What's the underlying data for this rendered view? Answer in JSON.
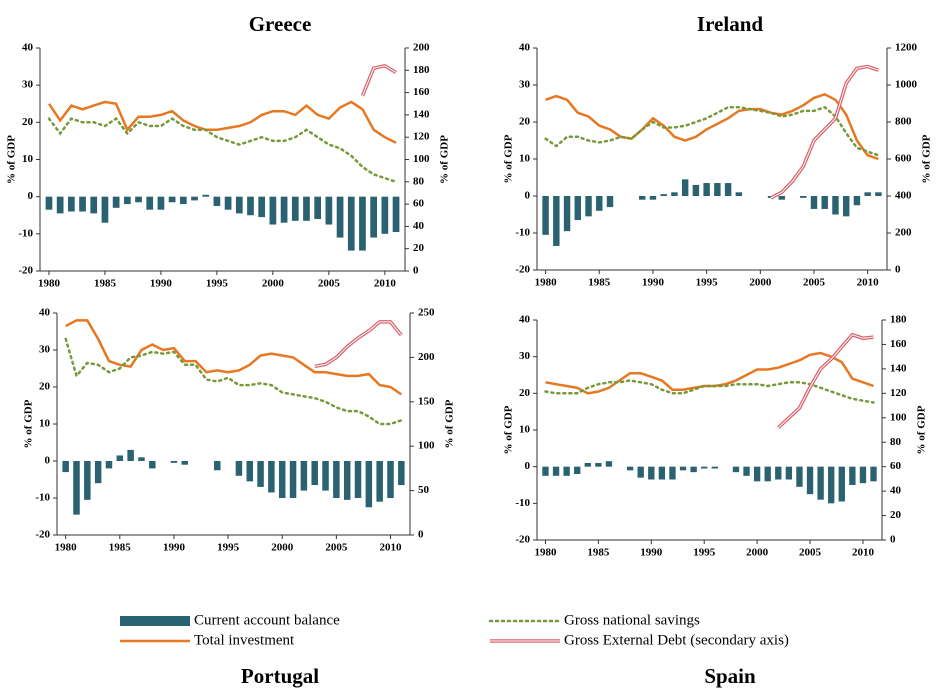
{
  "legend": [
    {
      "name": "Current account balance",
      "color": "#2a6272",
      "style": "bar"
    },
    {
      "name": "Total investment",
      "color": "#e87722",
      "style": "line"
    },
    {
      "name": "Gross national savings",
      "color": "#77993a",
      "style": "dotted"
    },
    {
      "name": "Gross External Debt (secondary axis)",
      "color": "#d9636b",
      "style": "double"
    }
  ],
  "chart_data": [
    {
      "type": "combo",
      "title": "Greece",
      "ylabel": "% of GDP",
      "y2label": "% of GDP",
      "x": [
        1980,
        1981,
        1982,
        1983,
        1984,
        1985,
        1986,
        1987,
        1988,
        1989,
        1990,
        1991,
        1992,
        1993,
        1994,
        1995,
        1996,
        1997,
        1998,
        1999,
        2000,
        2001,
        2002,
        2003,
        2004,
        2005,
        2006,
        2007,
        2008,
        2009,
        2010,
        2011
      ],
      "xlim": [
        1979.2,
        2011.8
      ],
      "xticks": [
        1980,
        1985,
        1990,
        1995,
        2000,
        2005,
        2010
      ],
      "ylim": [
        -20,
        40
      ],
      "yticks": [
        -20,
        -10,
        0,
        10,
        20,
        30,
        40
      ],
      "y2lim": [
        0,
        200
      ],
      "y2ticks": [
        0,
        20,
        40,
        60,
        80,
        100,
        120,
        140,
        160,
        180,
        200
      ],
      "series": [
        {
          "values": [
            -3.5,
            -4.5,
            -4,
            -4,
            -4.5,
            -7,
            -3,
            -2,
            -1.5,
            -3.5,
            -3.5,
            -1.5,
            -2,
            -1,
            0.5,
            -2.5,
            -3.5,
            -4.5,
            -5,
            -5.5,
            -7.5,
            -7,
            -6.5,
            -6.5,
            -6,
            -7.5,
            -11,
            -14.5,
            -14.5,
            -11,
            -10,
            -9.5
          ]
        },
        {
          "values": [
            25,
            20.5,
            24.5,
            23.5,
            24.5,
            25.5,
            25,
            18,
            21.5,
            21.5,
            22,
            23,
            20.5,
            19,
            18,
            18,
            18.5,
            19,
            20,
            22,
            23,
            23,
            22,
            24.5,
            22,
            21,
            24,
            25.5,
            23.5,
            18,
            16,
            14.5
          ]
        },
        {
          "values": [
            21,
            17,
            21,
            20,
            20,
            19,
            21,
            17,
            20,
            19,
            19,
            21,
            19,
            18,
            18,
            16,
            15,
            14,
            15,
            16,
            15,
            15,
            16,
            18,
            16,
            14,
            13,
            11,
            8,
            6,
            5,
            4
          ]
        },
        {
          "axis": "y2",
          "values": [
            null,
            null,
            null,
            null,
            null,
            null,
            null,
            null,
            null,
            null,
            null,
            null,
            null,
            null,
            null,
            null,
            null,
            null,
            null,
            null,
            null,
            null,
            null,
            null,
            null,
            null,
            null,
            null,
            157,
            182,
            184,
            178
          ]
        }
      ]
    },
    {
      "type": "combo",
      "title": "Ireland",
      "ylabel": "% of GDP",
      "y2label": "% of GDP",
      "x": [
        1980,
        1981,
        1982,
        1983,
        1984,
        1985,
        1986,
        1987,
        1988,
        1989,
        1990,
        1991,
        1992,
        1993,
        1994,
        1995,
        1996,
        1997,
        1998,
        1999,
        2000,
        2001,
        2002,
        2003,
        2004,
        2005,
        2006,
        2007,
        2008,
        2009,
        2010,
        2011
      ],
      "xlim": [
        1979.2,
        2011.8
      ],
      "xticks": [
        1980,
        1985,
        1990,
        1995,
        2000,
        2005,
        2010
      ],
      "ylim": [
        -20,
        40
      ],
      "yticks": [
        -20,
        -10,
        0,
        10,
        20,
        30,
        40
      ],
      "y2lim": [
        0,
        1200
      ],
      "y2ticks": [
        0,
        200,
        400,
        600,
        800,
        1000,
        1200
      ],
      "series": [
        {
          "values": [
            -10.5,
            -13.5,
            -9.5,
            -6.5,
            -5.5,
            -4,
            -3,
            0,
            0,
            -1,
            -1,
            0.5,
            1,
            4.5,
            3,
            3.5,
            3.5,
            3.5,
            1,
            0,
            0,
            -0.5,
            -1,
            0,
            -0.5,
            -3.5,
            -3.5,
            -5,
            -5.5,
            -2.5,
            1,
            1
          ]
        },
        {
          "values": [
            26,
            27,
            26,
            22.5,
            21.5,
            19,
            18,
            16,
            15.5,
            18,
            21,
            19,
            16,
            15,
            16,
            18,
            19.5,
            21,
            23,
            23.5,
            23.5,
            22.5,
            22,
            23,
            24.5,
            26.5,
            27.5,
            26,
            22,
            15,
            11,
            10
          ]
        },
        {
          "values": [
            15.5,
            13.5,
            16,
            16,
            15,
            14.5,
            15,
            16,
            15.5,
            18,
            20,
            18.5,
            18.5,
            19,
            20,
            21,
            22.5,
            24,
            24,
            23.5,
            23,
            22.5,
            21.5,
            22,
            23,
            23,
            24,
            21.5,
            17,
            13,
            12,
            11
          ]
        },
        {
          "axis": "y2",
          "values": [
            null,
            null,
            null,
            null,
            null,
            null,
            null,
            null,
            null,
            null,
            null,
            null,
            null,
            null,
            null,
            null,
            null,
            null,
            null,
            null,
            null,
            390,
            420,
            480,
            560,
            700,
            760,
            820,
            1010,
            1090,
            1100,
            1080
          ]
        }
      ]
    },
    {
      "type": "combo",
      "title": "Portugal",
      "ylabel": "% of GDP",
      "y2label": "% of GDP",
      "x": [
        1980,
        1981,
        1982,
        1983,
        1984,
        1985,
        1986,
        1987,
        1988,
        1989,
        1990,
        1991,
        1992,
        1993,
        1994,
        1995,
        1996,
        1997,
        1998,
        1999,
        2000,
        2001,
        2002,
        2003,
        2004,
        2005,
        2006,
        2007,
        2008,
        2009,
        2010,
        2011
      ],
      "xlim": [
        1979.2,
        2011.8
      ],
      "xticks": [
        1980,
        1985,
        1990,
        1995,
        2000,
        2005,
        2010
      ],
      "ylim": [
        -20,
        40
      ],
      "yticks": [
        -20,
        -10,
        0,
        10,
        20,
        30,
        40
      ],
      "y2lim": [
        0,
        250
      ],
      "y2ticks": [
        0,
        50,
        100,
        150,
        200,
        250
      ],
      "series": [
        {
          "values": [
            -3,
            -14.5,
            -10.5,
            -6,
            -2,
            1.5,
            3,
            1,
            -2,
            0,
            -0.5,
            -1,
            0,
            0,
            -2.5,
            0,
            -4,
            -5.5,
            -7,
            -8.5,
            -10,
            -10,
            -8,
            -6.5,
            -8,
            -10,
            -10.5,
            -10,
            -12.5,
            -11,
            -10,
            -6.5
          ]
        },
        {
          "values": [
            36.5,
            38,
            38,
            33,
            27,
            26,
            25.5,
            30,
            31.5,
            30,
            30.5,
            27,
            27,
            24,
            24.5,
            24,
            24.5,
            26,
            28.5,
            29,
            28.5,
            28,
            26,
            24,
            24,
            23.5,
            23,
            23,
            23.5,
            20.5,
            20,
            18
          ]
        },
        {
          "values": [
            33,
            23,
            26.5,
            26,
            24,
            25,
            28,
            28.5,
            29.5,
            29,
            29.5,
            26,
            26,
            22,
            21.5,
            22.5,
            20.5,
            20.5,
            21,
            20.5,
            18.5,
            18,
            17.5,
            17,
            16,
            14.5,
            13.5,
            13.5,
            12,
            10,
            10,
            11
          ]
        },
        {
          "axis": "y2",
          "values": [
            null,
            null,
            null,
            null,
            null,
            null,
            null,
            null,
            null,
            null,
            null,
            null,
            null,
            null,
            null,
            null,
            null,
            null,
            null,
            null,
            null,
            null,
            null,
            190,
            192,
            200,
            212,
            222,
            230,
            240,
            240,
            225
          ]
        }
      ]
    },
    {
      "type": "combo",
      "title": "Spain",
      "ylabel": "% of GDP",
      "y2label": "% of GDP",
      "x": [
        1980,
        1981,
        1982,
        1983,
        1984,
        1985,
        1986,
        1987,
        1988,
        1989,
        1990,
        1991,
        1992,
        1993,
        1994,
        1995,
        1996,
        1997,
        1998,
        1999,
        2000,
        2001,
        2002,
        2003,
        2004,
        2005,
        2006,
        2007,
        2008,
        2009,
        2010,
        2011
      ],
      "xlim": [
        1979.2,
        2011.8
      ],
      "xticks": [
        1980,
        1985,
        1990,
        1995,
        2000,
        2005,
        2010
      ],
      "ylim": [
        -20,
        40
      ],
      "yticks": [
        -20,
        -10,
        0,
        10,
        20,
        30,
        40
      ],
      "y2lim": [
        0,
        180
      ],
      "y2ticks": [
        0,
        20,
        40,
        60,
        80,
        100,
        120,
        140,
        160,
        180
      ],
      "series": [
        {
          "values": [
            -2.5,
            -2.5,
            -2.5,
            -2,
            1,
            1,
            1.5,
            0,
            -1,
            -3,
            -3.5,
            -3.5,
            -3.5,
            -1,
            -1.5,
            -0.5,
            -0.5,
            0,
            -1.5,
            -2.5,
            -4,
            -4,
            -3.5,
            -3.5,
            -5.5,
            -7.5,
            -9,
            -10,
            -9.5,
            -5,
            -4.5,
            -4
          ]
        },
        {
          "values": [
            23,
            22.5,
            22,
            21.5,
            20,
            20.5,
            21.5,
            23.5,
            25.5,
            25.5,
            24.5,
            23.5,
            21,
            21,
            21.5,
            22,
            22,
            22.5,
            23.5,
            25,
            26.5,
            26.5,
            27,
            28,
            29,
            30.5,
            31,
            30,
            28.5,
            24,
            23,
            22
          ]
        },
        {
          "values": [
            20.5,
            20,
            20,
            20,
            21.5,
            22.5,
            23,
            23,
            23.5,
            23,
            22.5,
            21,
            20,
            20,
            21,
            22,
            22,
            22,
            22.5,
            22.5,
            22.5,
            22,
            22.5,
            23,
            23,
            22.5,
            21.5,
            20.5,
            19.5,
            18.5,
            18,
            17.5
          ]
        },
        {
          "axis": "y2",
          "values": [
            null,
            null,
            null,
            null,
            null,
            null,
            null,
            null,
            null,
            null,
            null,
            null,
            null,
            null,
            null,
            null,
            null,
            null,
            null,
            null,
            null,
            null,
            92,
            100,
            108,
            125,
            140,
            148,
            158,
            168,
            165,
            166
          ]
        }
      ]
    }
  ]
}
